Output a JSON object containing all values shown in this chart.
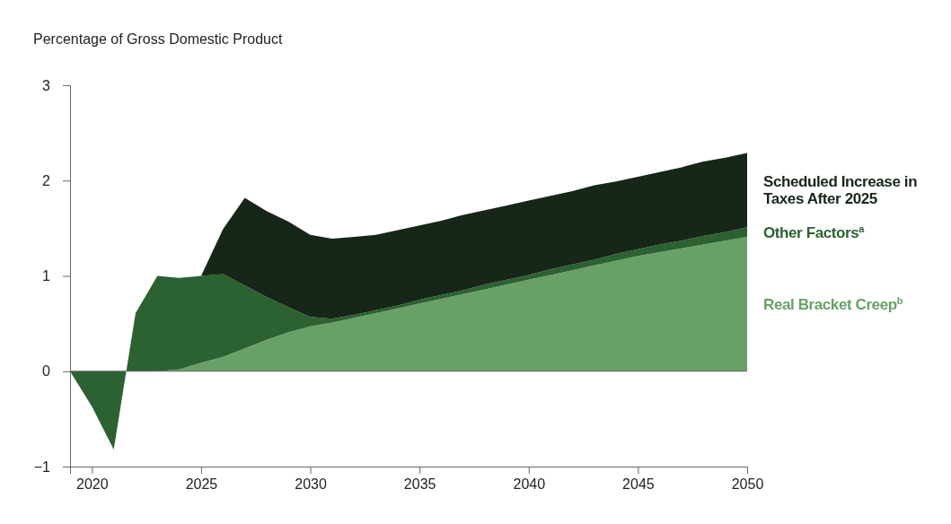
{
  "chart_data": {
    "type": "area",
    "stacked": true,
    "ylabel": "Percentage of Gross Domestic Product",
    "x": [
      2019,
      2020,
      2021,
      2022,
      2023,
      2024,
      2025,
      2026,
      2027,
      2028,
      2029,
      2030,
      2031,
      2032,
      2033,
      2034,
      2035,
      2036,
      2037,
      2038,
      2039,
      2040,
      2041,
      2042,
      2043,
      2044,
      2045,
      2046,
      2047,
      2048,
      2049,
      2050
    ],
    "xlim": [
      2019,
      2050
    ],
    "xticks": [
      2020,
      2025,
      2030,
      2035,
      2040,
      2045,
      2050
    ],
    "ylim": [
      -1,
      3
    ],
    "yticks": [
      {
        "value": -1,
        "label": "−1"
      },
      0,
      1,
      2,
      3
    ],
    "ref_lines": [
      {
        "axis": "y",
        "value": 0,
        "color": "#666666"
      }
    ],
    "legend": "right",
    "series": [
      {
        "name": "Real Bracket Creep$^{b}$",
        "color": "#69a068",
        "values": [
          0,
          0,
          0,
          0,
          0,
          0.02,
          0.09,
          0.15,
          0.24,
          0.33,
          0.41,
          0.47,
          0.51,
          0.56,
          0.61,
          0.66,
          0.71,
          0.76,
          0.81,
          0.86,
          0.91,
          0.96,
          1.01,
          1.06,
          1.11,
          1.16,
          1.21,
          1.25,
          1.29,
          1.33,
          1.37,
          1.41
        ]
      },
      {
        "name": "Other Factors$^{a}$",
        "color": "#2c6131",
        "values": [
          0,
          -0.37,
          -0.82,
          0.61,
          1.0,
          0.96,
          0.91,
          0.87,
          0.66,
          0.45,
          0.26,
          0.1,
          0.04,
          0.03,
          0.03,
          0.03,
          0.04,
          0.04,
          0.04,
          0.05,
          0.05,
          0.05,
          0.06,
          0.06,
          0.06,
          0.07,
          0.07,
          0.08,
          0.08,
          0.09,
          0.09,
          0.1
        ]
      },
      {
        "name": "Scheduled Increase in Taxes After 2025",
        "color": "#16271a",
        "values": [
          0,
          0,
          0,
          0,
          0,
          0,
          0,
          0.47,
          0.92,
          0.9,
          0.9,
          0.86,
          0.84,
          0.82,
          0.79,
          0.79,
          0.78,
          0.78,
          0.79,
          0.78,
          0.78,
          0.78,
          0.77,
          0.77,
          0.78,
          0.76,
          0.76,
          0.76,
          0.77,
          0.78,
          0.78,
          0.78
        ]
      }
    ]
  }
}
